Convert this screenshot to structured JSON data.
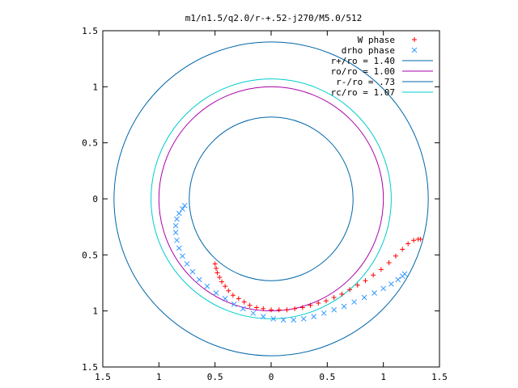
{
  "chart_data": {
    "type": "scatter",
    "title": "m1/n1.5/q2.0/r-+.52-j270/M5.0/512",
    "xlim": [
      -1.5,
      1.5
    ],
    "ylim": [
      -1.5,
      1.5
    ],
    "x_ticks": [
      -1.5,
      -1,
      -0.5,
      0,
      0.5,
      1,
      1.5
    ],
    "y_ticks": [
      -1.5,
      -1,
      -0.5,
      0,
      0.5,
      1,
      1.5
    ],
    "x_tick_labels": [
      "1.5",
      "1",
      "0.5",
      "0",
      "0.5",
      "1",
      "1.5"
    ],
    "y_tick_labels": [
      "1.5",
      "1",
      "0.5",
      "0",
      "0.5",
      "1",
      "1.5"
    ],
    "grid": false,
    "legend_position": "top-right",
    "series": [
      {
        "name": "W phase",
        "marker": "+",
        "color": "#ff0000",
        "points": [
          [
            -0.5,
            -0.58
          ],
          [
            -0.49,
            -0.62
          ],
          [
            -0.48,
            -0.66
          ],
          [
            -0.46,
            -0.7
          ],
          [
            -0.44,
            -0.74
          ],
          [
            -0.41,
            -0.78
          ],
          [
            -0.38,
            -0.82
          ],
          [
            -0.34,
            -0.86
          ],
          [
            -0.29,
            -0.89
          ],
          [
            -0.24,
            -0.92
          ],
          [
            -0.19,
            -0.95
          ],
          [
            -0.13,
            -0.97
          ],
          [
            -0.07,
            -0.98
          ],
          [
            0.0,
            -0.99
          ],
          [
            0.07,
            -0.99
          ],
          [
            0.14,
            -0.99
          ],
          [
            0.21,
            -0.98
          ],
          [
            0.28,
            -0.97
          ],
          [
            0.35,
            -0.95
          ],
          [
            0.42,
            -0.93
          ],
          [
            0.49,
            -0.91
          ],
          [
            0.56,
            -0.88
          ],
          [
            0.63,
            -0.85
          ],
          [
            0.7,
            -0.81
          ],
          [
            0.77,
            -0.77
          ],
          [
            0.84,
            -0.73
          ],
          [
            0.91,
            -0.68
          ],
          [
            0.98,
            -0.63
          ],
          [
            1.05,
            -0.57
          ],
          [
            1.11,
            -0.51
          ],
          [
            1.17,
            -0.45
          ],
          [
            1.22,
            -0.4
          ],
          [
            1.27,
            -0.37
          ],
          [
            1.31,
            -0.36
          ],
          [
            1.33,
            -0.36
          ]
        ]
      },
      {
        "name": "drho phase",
        "marker": "x",
        "color": "#3399ff",
        "points": [
          [
            -0.77,
            -0.06
          ],
          [
            -0.79,
            -0.09
          ],
          [
            -0.82,
            -0.13
          ],
          [
            -0.84,
            -0.18
          ],
          [
            -0.85,
            -0.24
          ],
          [
            -0.85,
            -0.3
          ],
          [
            -0.84,
            -0.37
          ],
          [
            -0.82,
            -0.44
          ],
          [
            -0.79,
            -0.51
          ],
          [
            -0.75,
            -0.58
          ],
          [
            -0.7,
            -0.65
          ],
          [
            -0.64,
            -0.72
          ],
          [
            -0.57,
            -0.78
          ],
          [
            -0.49,
            -0.84
          ],
          [
            -0.41,
            -0.89
          ],
          [
            -0.33,
            -0.94
          ],
          [
            -0.25,
            -0.98
          ],
          [
            -0.16,
            -1.02
          ],
          [
            -0.07,
            -1.05
          ],
          [
            0.02,
            -1.07
          ],
          [
            0.11,
            -1.08
          ],
          [
            0.2,
            -1.08
          ],
          [
            0.29,
            -1.07
          ],
          [
            0.38,
            -1.05
          ],
          [
            0.47,
            -1.02
          ],
          [
            0.56,
            -0.99
          ],
          [
            0.65,
            -0.96
          ],
          [
            0.74,
            -0.92
          ],
          [
            0.83,
            -0.88
          ],
          [
            0.92,
            -0.84
          ],
          [
            1.0,
            -0.8
          ],
          [
            1.07,
            -0.76
          ],
          [
            1.13,
            -0.72
          ],
          [
            1.17,
            -0.69
          ],
          [
            1.19,
            -0.67
          ]
        ]
      },
      {
        "name": "r+/ro = 1.40",
        "type": "circle",
        "radius": 1.4,
        "color": "#0066aa"
      },
      {
        "name": "ro/ro = 1.00",
        "type": "circle",
        "radius": 1.0,
        "color": "#aa00aa"
      },
      {
        "name": "r-/ro = .73",
        "type": "circle",
        "radius": 0.73,
        "color": "#0066aa"
      },
      {
        "name": "rc/ro = 1.07",
        "type": "circle",
        "radius": 1.07,
        "color": "#00cccc"
      }
    ]
  }
}
